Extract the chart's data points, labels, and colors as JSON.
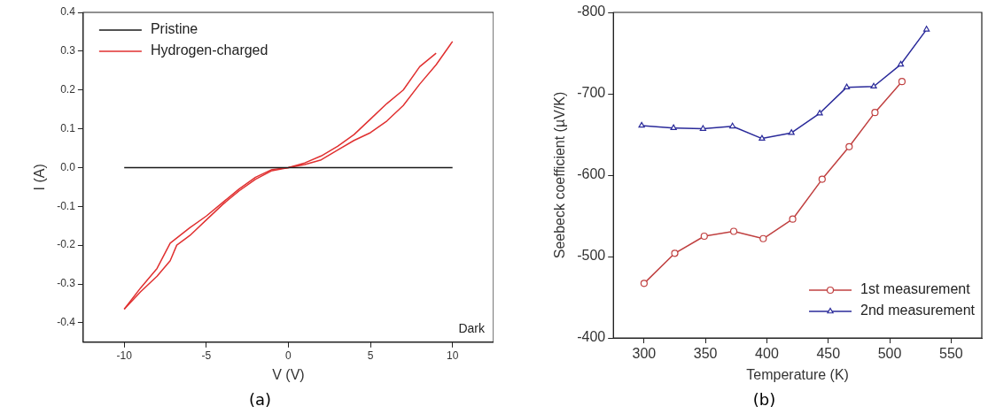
{
  "chart_data": [
    {
      "type": "line",
      "title": "(a)",
      "xlabel": "V (V)",
      "ylabel": "I (A)",
      "annotations": [
        "Dark"
      ],
      "xlim": [
        -12.5,
        12.5
      ],
      "xticks": [
        -10,
        -5,
        0,
        5,
        10
      ],
      "ylim": [
        -0.45,
        0.4
      ],
      "yticks": [
        {
          "value": -0.4,
          "label": "-0.4"
        },
        {
          "value": -0.3,
          "label": "-0.3"
        },
        {
          "value": -0.2,
          "label": "-0.2"
        },
        {
          "value": -0.1,
          "label": "-0.1"
        },
        {
          "value": 0,
          "label": "0.0"
        },
        {
          "value": 0.1,
          "label": "0.1"
        },
        {
          "value": 0.2,
          "label": "0.2"
        },
        {
          "value": 0.3,
          "label": "0.3"
        },
        {
          "value": 0.4,
          "label": "0.4"
        }
      ],
      "grid": false,
      "legend": "top left",
      "marker": "none",
      "line_style": "solid",
      "series": [
        {
          "name": "Pristine",
          "color": "#1a1a1a",
          "x": [
            -10,
            10
          ],
          "values": [
            0,
            0
          ]
        },
        {
          "name": "Hydrogen-charged",
          "color": "#e03030",
          "x": [
            -10,
            -9,
            -8,
            -7.2,
            -6,
            -5,
            -4,
            -3,
            -2,
            -1,
            0,
            1,
            2,
            3,
            4,
            5,
            6,
            7,
            8,
            9,
            10
          ],
          "values": [
            -0.365,
            -0.31,
            -0.26,
            -0.195,
            -0.155,
            -0.125,
            -0.09,
            -0.055,
            -0.025,
            -0.005,
            0,
            0.008,
            0.02,
            0.045,
            0.07,
            0.09,
            0.12,
            0.16,
            0.215,
            0.265,
            0.325
          ]
        },
        {
          "color": "#e03030",
          "x": [
            -10,
            -9,
            -8,
            -7.2,
            -6.8,
            -6,
            -5,
            -4,
            -3,
            -2,
            -1,
            0,
            1,
            2,
            3,
            4,
            5,
            6,
            7,
            8,
            9
          ],
          "values": [
            -0.365,
            -0.32,
            -0.28,
            -0.24,
            -0.2,
            -0.175,
            -0.135,
            -0.095,
            -0.06,
            -0.03,
            -0.008,
            0,
            0.012,
            0.03,
            0.055,
            0.085,
            0.125,
            0.165,
            0.2,
            0.26,
            0.295
          ]
        }
      ]
    },
    {
      "type": "line",
      "title": "(b)",
      "xlabel": "Temperature (K)",
      "ylabel": "Seebeck coefficient (µV/K)",
      "xlim": [
        275,
        575
      ],
      "xticks": [
        300,
        350,
        400,
        450,
        500,
        550
      ],
      "ylim": [
        -400,
        -800
      ],
      "yticks": [
        -400,
        -500,
        -600,
        -700,
        -800
      ],
      "grid": false,
      "legend": "bottom right",
      "line_style": "solid",
      "series": [
        {
          "name": "1st measurement",
          "color": "#c04040",
          "marker": "circle",
          "x": [
            300,
            325,
            349,
            373,
            397,
            421,
            445,
            467,
            488,
            510
          ],
          "values": [
            -467,
            -504,
            -525,
            -531,
            -522,
            -546,
            -595,
            -635,
            -677,
            -715
          ]
        },
        {
          "name": "2nd measurement",
          "color": "#2a2a9a",
          "marker": "triangle",
          "x": [
            298,
            324,
            348,
            372,
            396,
            420,
            443,
            465,
            487,
            509,
            530
          ],
          "values": [
            -661,
            -658,
            -657,
            -660,
            -645,
            -652,
            -676,
            -708,
            -709,
            -736,
            -779
          ]
        }
      ]
    }
  ]
}
